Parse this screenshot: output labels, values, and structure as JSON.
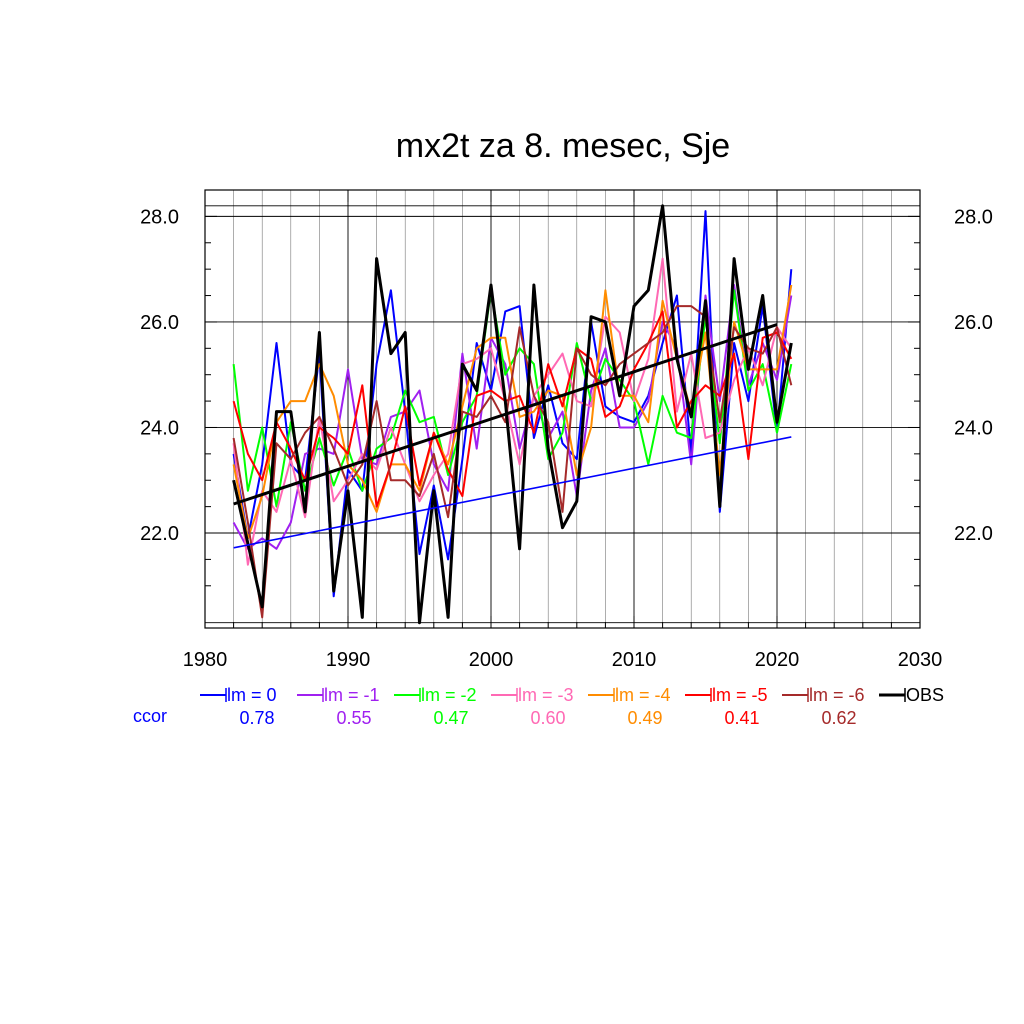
{
  "chart_data": {
    "type": "line",
    "title": "mx2t za 8. mesec, Sje",
    "xlim": [
      1980,
      2030
    ],
    "ylim": [
      20.2,
      28.5
    ],
    "x_ticks": [
      1980,
      1990,
      2000,
      2010,
      2020,
      2030
    ],
    "x_tick_labels": [
      "1980",
      "1990",
      "2000",
      "2010",
      "2020",
      "2030"
    ],
    "y_ticks": [
      22,
      24,
      26,
      28
    ],
    "y_tick_labels": [
      "22.0",
      "24.0",
      "26.0",
      "28.0"
    ],
    "grid": true,
    "legend_position": "bottom",
    "ccor_label": "ccor",
    "x": [
      1982,
      1983,
      1984,
      1985,
      1986,
      1987,
      1988,
      1989,
      1990,
      1991,
      1992,
      1993,
      1994,
      1995,
      1996,
      1997,
      1998,
      1999,
      2000,
      2001,
      2002,
      2003,
      2004,
      2005,
      2006,
      2007,
      2008,
      2009,
      2010,
      2011,
      2012,
      2013,
      2014,
      2015,
      2016,
      2017,
      2018,
      2019,
      2020,
      2021
    ],
    "series": [
      {
        "name": "lm = 0",
        "color": "#0000ff",
        "ccor": "0.78",
        "values": [
          23.5,
          21.9,
          23.3,
          25.6,
          23.3,
          23.0,
          25.4,
          20.8,
          23.2,
          22.8,
          25.2,
          26.6,
          24.3,
          21.6,
          22.9,
          21.5,
          23.4,
          25.6,
          24.7,
          26.2,
          26.3,
          23.8,
          24.8,
          23.7,
          23.4,
          26.0,
          24.4,
          24.2,
          24.1,
          24.6,
          25.6,
          26.5,
          23.5,
          28.1,
          22.4,
          25.6,
          24.5,
          26.3,
          23.9,
          27.0
        ]
      },
      {
        "name": "lm = -1",
        "color": "#a020f0",
        "ccor": "0.55",
        "values": [
          22.2,
          21.7,
          21.9,
          21.7,
          22.2,
          23.5,
          23.6,
          23.5,
          25.1,
          23.4,
          23.3,
          24.2,
          24.3,
          24.7,
          23.3,
          22.8,
          25.4,
          23.6,
          25.7,
          25.2,
          23.6,
          24.6,
          23.8,
          24.3,
          22.7,
          24.7,
          25.5,
          24.0,
          24.0,
          24.5,
          26.0,
          25.5,
          23.3,
          26.5,
          24.5,
          26.7,
          24.8,
          25.6,
          24.9,
          26.5
        ]
      },
      {
        "name": "lm = -2",
        "color": "#00ff00",
        "ccor": "0.47",
        "values": [
          25.2,
          22.8,
          24.0,
          22.5,
          24.1,
          22.8,
          23.8,
          22.9,
          23.6,
          22.8,
          23.6,
          23.8,
          24.7,
          24.1,
          24.2,
          23.1,
          24.1,
          24.6,
          26.6,
          25.0,
          25.5,
          25.2,
          23.4,
          23.9,
          25.6,
          24.5,
          25.3,
          24.9,
          24.5,
          23.3,
          24.6,
          23.9,
          23.8,
          26.1,
          23.7,
          26.6,
          24.7,
          25.2,
          23.9,
          25.2
        ]
      },
      {
        "name": "lm = -3",
        "color": "#ff69b4",
        "ccor": "0.60",
        "values": [
          23.7,
          21.4,
          22.8,
          22.4,
          23.4,
          22.3,
          24.2,
          22.6,
          23.0,
          23.5,
          23.2,
          24.0,
          23.3,
          22.6,
          23.1,
          23.5,
          25.2,
          25.3,
          25.5,
          24.5,
          23.3,
          24.6,
          25.0,
          25.4,
          24.5,
          24.4,
          26.1,
          25.8,
          24.5,
          25.3,
          27.2,
          24.3,
          25.4,
          23.8,
          23.9,
          24.9,
          25.5,
          24.8,
          25.9,
          25.5
        ]
      },
      {
        "name": "lm = -4",
        "color": "#ff8c00",
        "ccor": "0.49",
        "values": [
          23.3,
          21.9,
          22.7,
          24.1,
          24.5,
          24.5,
          25.2,
          24.6,
          23.3,
          23.0,
          22.4,
          23.3,
          23.3,
          22.8,
          23.9,
          23.3,
          24.4,
          25.5,
          25.7,
          25.7,
          24.2,
          24.3,
          24.7,
          24.6,
          23.1,
          24.0,
          26.6,
          24.6,
          24.6,
          24.1,
          26.4,
          25.3,
          24.3,
          25.8,
          23.1,
          26.0,
          25.1,
          25.1,
          25.1,
          26.7
        ]
      },
      {
        "name": "lm = -5",
        "color": "#ff0000",
        "ccor": "0.41",
        "values": [
          24.5,
          23.5,
          23.0,
          24.1,
          23.6,
          23.0,
          24.0,
          23.8,
          23.5,
          24.8,
          22.5,
          23.3,
          24.4,
          22.9,
          23.9,
          23.2,
          22.7,
          24.6,
          24.7,
          24.5,
          24.6,
          23.9,
          25.2,
          24.4,
          25.5,
          25.3,
          24.2,
          24.4,
          25.1,
          25.6,
          26.2,
          24.0,
          24.5,
          24.8,
          24.6,
          25.4,
          23.4,
          25.7,
          25.8,
          25.3
        ]
      },
      {
        "name": "lm = -6",
        "color": "#a52a2a",
        "ccor": "0.62",
        "values": [
          23.8,
          22.2,
          20.4,
          23.7,
          23.4,
          23.9,
          24.2,
          23.6,
          22.9,
          23.3,
          24.5,
          23.0,
          23.0,
          22.7,
          23.5,
          22.3,
          24.3,
          24.2,
          24.6,
          24.1,
          25.9,
          24.6,
          24.1,
          22.4,
          25.5,
          25.0,
          24.8,
          25.2,
          25.4,
          25.6,
          25.8,
          26.3,
          26.3,
          26.1,
          24.1,
          25.9,
          25.5,
          25.4,
          25.9,
          24.8
        ]
      },
      {
        "name": "OBS",
        "color": "#000000",
        "ccor": "",
        "values": [
          23.0,
          21.8,
          20.6,
          24.3,
          24.3,
          22.4,
          25.8,
          20.9,
          22.8,
          20.4,
          27.2,
          25.4,
          25.8,
          20.3,
          22.8,
          20.4,
          25.2,
          24.7,
          26.7,
          24.5,
          21.7,
          26.7,
          23.6,
          22.1,
          22.6,
          26.1,
          26.0,
          24.6,
          26.3,
          26.6,
          28.2,
          25.3,
          24.2,
          26.4,
          22.5,
          27.2,
          25.1,
          26.5,
          24.1,
          25.6
        ]
      }
    ],
    "trend_lines": [
      {
        "name": "lm = 0",
        "color": "#0000ff",
        "x": [
          1982,
          2021
        ],
        "values": [
          21.72,
          23.82
        ]
      },
      {
        "name": "OBS",
        "color": "#000000",
        "x": [
          1982,
          2020
        ],
        "values": [
          22.55,
          25.95
        ]
      }
    ]
  }
}
